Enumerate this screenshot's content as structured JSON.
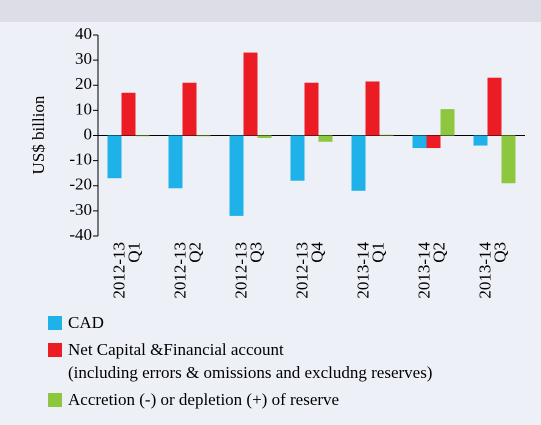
{
  "chart_data": {
    "type": "bar",
    "ylabel": "US$ billion",
    "categories": [
      [
        "2012-13",
        "Q1"
      ],
      [
        "2012-13",
        "Q2"
      ],
      [
        "2012-13",
        "Q3"
      ],
      [
        "2012-13",
        "Q4"
      ],
      [
        "2013-14",
        "Q1"
      ],
      [
        "2013-14",
        "Q2"
      ],
      [
        "2013-14",
        "Q3"
      ]
    ],
    "series": [
      {
        "name": "CAD",
        "color": "#1fb2e8",
        "values": [
          -17,
          -21,
          -32,
          -18,
          -22,
          -5,
          -4
        ]
      },
      {
        "name": "Net Capital &Financial account\n(including errors & omissions and excludng reserves)",
        "color": "#ec1c24",
        "values": [
          17,
          21,
          33,
          21,
          21.5,
          -5,
          23
        ]
      },
      {
        "name": "Accretion (-) or depletion (+) of reserve",
        "color": "#8dc63f",
        "values": [
          -0.3,
          -0.3,
          -1,
          -2.5,
          0.3,
          10.5,
          -19
        ]
      }
    ],
    "ylim": [
      -40,
      40
    ],
    "yticks": [
      40,
      30,
      20,
      10,
      0,
      -10,
      -20,
      -30,
      -40
    ],
    "grid": false
  }
}
